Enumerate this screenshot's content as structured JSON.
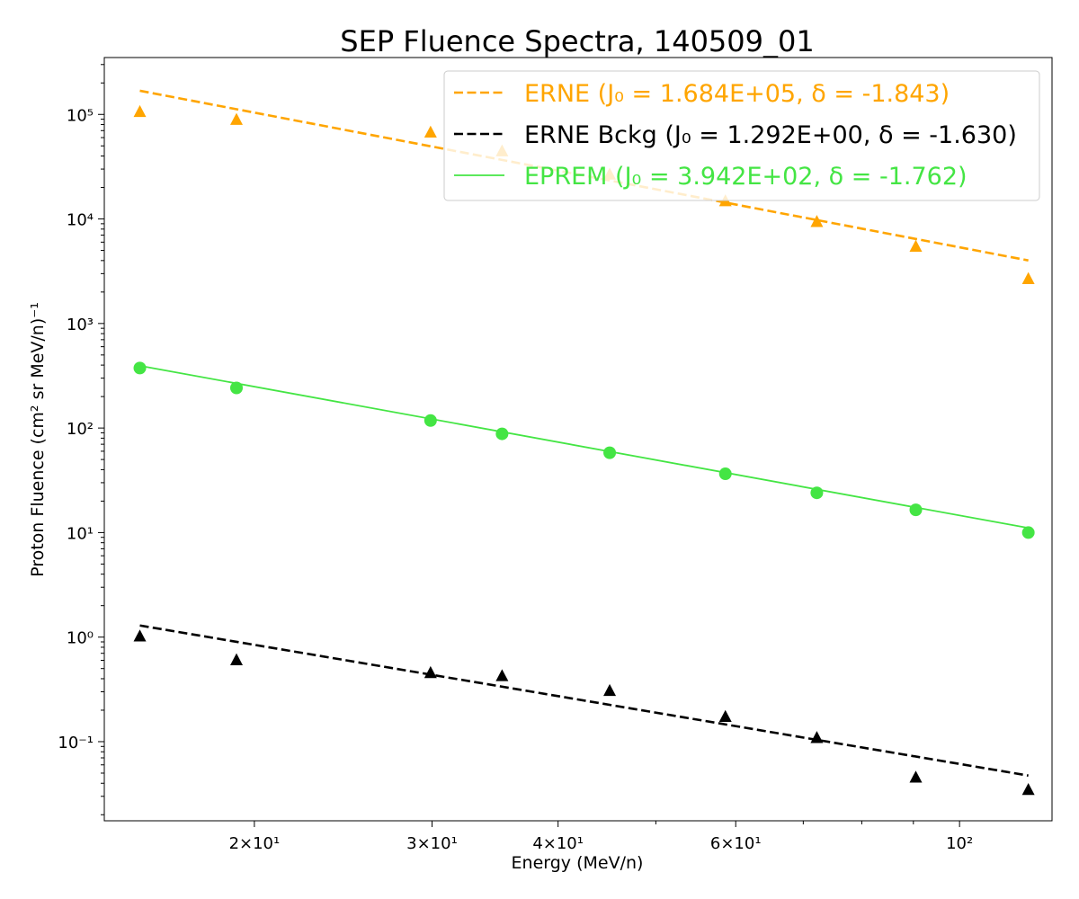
{
  "chart_data": {
    "type": "scatter",
    "title": "SEP Fluence Spectra, 140509_01",
    "xlabel": "Energy (MeV/n)",
    "ylabel": "Proton Fluence (cm² sr MeV/n)⁻¹",
    "xscale": "log",
    "yscale": "log",
    "xlim": [
      14.2,
      123.5
    ],
    "ylim": [
      0.0175,
      350000
    ],
    "grid": false,
    "legend_position": "top-right",
    "x_ticks": [
      {
        "value": 20,
        "label": "2×10¹"
      },
      {
        "value": 30,
        "label": "3×10¹"
      },
      {
        "value": 40,
        "label": "4×10¹"
      },
      {
        "value": 60,
        "label": "6×10¹"
      },
      {
        "value": 100,
        "label": "10²"
      }
    ],
    "y_ticks": [
      {
        "value": 0.1,
        "label": "10⁻¹"
      },
      {
        "value": 1,
        "label": "10⁰"
      },
      {
        "value": 10,
        "label": "10¹"
      },
      {
        "value": 100,
        "label": "10²"
      },
      {
        "value": 1000,
        "label": "10³"
      },
      {
        "value": 10000,
        "label": "10⁴"
      },
      {
        "value": 100000,
        "label": "10⁵"
      }
    ],
    "x": [
      15.4,
      19.2,
      29.9,
      35.2,
      45.0,
      58.6,
      72.2,
      90.5,
      117.0
    ],
    "series": [
      {
        "name": "ERNE",
        "role": "data",
        "marker": "triangle",
        "color": "#FFA500",
        "values": [
          107000,
          90000,
          68000,
          45000,
          27000,
          15000,
          9500,
          5500,
          2700
        ]
      },
      {
        "name": "ERNE Bckg",
        "role": "data",
        "marker": "triangle",
        "color": "#000000",
        "values": [
          1.03,
          0.61,
          0.46,
          0.43,
          0.31,
          0.175,
          0.11,
          0.046,
          0.035
        ]
      },
      {
        "name": "EPREM",
        "role": "data",
        "marker": "circle",
        "color": "#44E544",
        "values": [
          375,
          242,
          118,
          88,
          58,
          36.5,
          24,
          16.5,
          10
        ]
      }
    ],
    "fits": [
      {
        "series": "ERNE",
        "J0": 168400,
        "delta": -1.843,
        "x_ref": 15.4,
        "color": "#FFA500",
        "style": "dashed",
        "legend": "ERNE (J₀ = 1.684E+05, δ = -1.843)"
      },
      {
        "series": "ERNE Bckg",
        "J0": 1.292,
        "delta": -1.63,
        "x_ref": 15.4,
        "color": "#000000",
        "style": "dashed",
        "legend": "ERNE Bckg (J₀ = 1.292E+00, δ = -1.630)"
      },
      {
        "series": "EPREM",
        "J0": 394.2,
        "delta": -1.762,
        "x_ref": 15.4,
        "color": "#44E544",
        "style": "solid",
        "legend": "EPREM (J₀ = 3.942E+02, δ = -1.762)"
      }
    ]
  }
}
